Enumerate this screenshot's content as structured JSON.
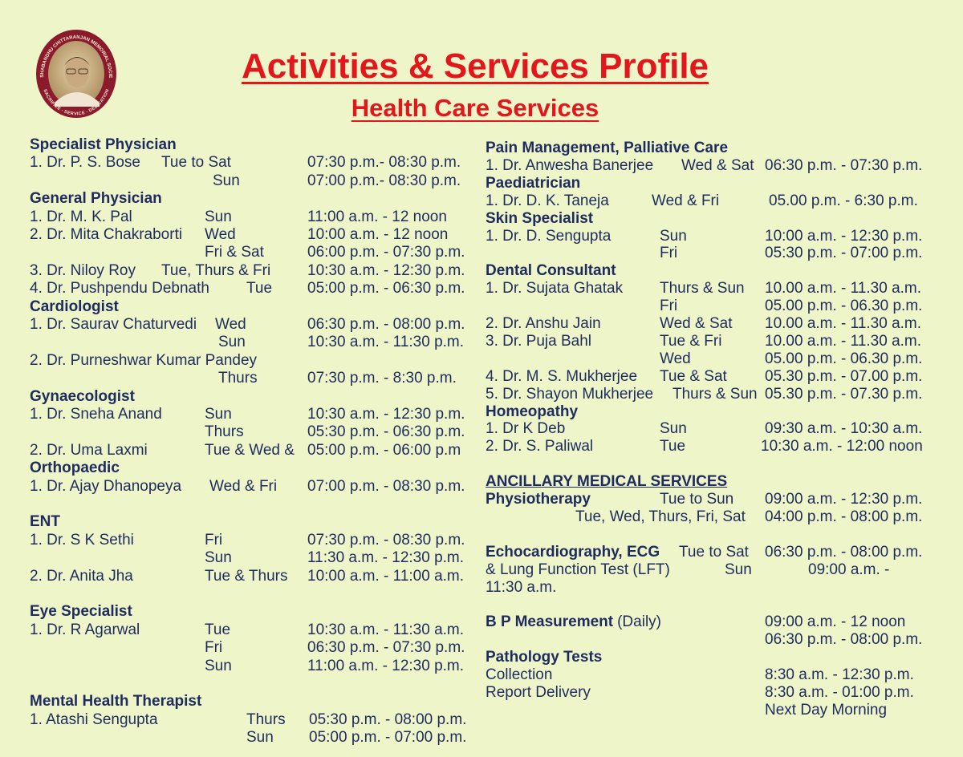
{
  "logo": {
    "ring_text_top": "DESHABANDHU CHITTARANJAN MEMORIAL SOCIETY",
    "ring_text_bottom": "SACRIFICE - SERVICE - DEDICATION",
    "ring_color": "#8b1a2c"
  },
  "header": {
    "title": "Activities & Services Profile",
    "subtitle": "Health Care Services",
    "title_color": "#e3161c"
  },
  "text_color": "#1f2b5e",
  "left": [
    {
      "heading": "Specialist Physician"
    },
    {
      "name": "1. Dr. P. S. Bose",
      "days": "Tue to Sat",
      "time": "07:30 p.m.- 08:30 p.m."
    },
    {
      "days": "Sun",
      "time": "07:00 p.m.- 08:30 p.m."
    },
    {
      "heading": "General Physician"
    },
    {
      "name": "1. Dr. M. K. Pal",
      "days": "Sun",
      "time": "11:00 a.m. - 12 noon"
    },
    {
      "name": "2. Dr. Mita Chakraborti",
      "days": "Wed",
      "time": "10:00 a.m. - 12 noon"
    },
    {
      "days": "Fri & Sat",
      "time": "06:00 p.m. - 07:30 p.m."
    },
    {
      "name": "3. Dr. Niloy Roy",
      "days": "Tue, Thurs & Fri",
      "time": "10:30 a.m. - 12:30 p.m."
    },
    {
      "name": "4. Dr. Pushpendu Debnath",
      "days": "Tue",
      "time": "05:00 p.m. - 06:30 p.m."
    },
    {
      "heading": "Cardiologist"
    },
    {
      "name": "1. Dr. Saurav Chaturvedi",
      "days": "Wed",
      "time": "06:30 p.m. - 08:00 p.m."
    },
    {
      "days": "Sun",
      "time": "10:30 a.m. - 11:30 p.m."
    },
    {
      "name": "2. Dr. Purneshwar Kumar Pandey"
    },
    {
      "days": "Thurs",
      "time": "07:30 p.m. - 8:30 p.m."
    },
    {
      "heading": "Gynaecologist"
    },
    {
      "name": "1. Dr. Sneha Anand",
      "days": "Sun",
      "time": "10:30 a.m. - 12:30 p.m."
    },
    {
      "days": "Thurs",
      "time": "05:30 p.m. - 06:30 p.m."
    },
    {
      "name": "2. Dr. Uma Laxmi",
      "days": "Tue & Wed &",
      "time": "05:00 p.m. - 06:00 p.m"
    },
    {
      "heading": "Orthopaedic"
    },
    {
      "name": "1. Dr. Ajay Dhanopeya",
      "days": "Wed & Fri",
      "time": "07:00 p.m. - 08:30 p.m."
    },
    {
      "heading": "ENT"
    },
    {
      "name": "1. Dr. S K Sethi",
      "days": "Fri",
      "time": "07:30 p.m. - 08:30 p.m."
    },
    {
      "days": "Sun",
      "time": "11:30 a.m. - 12:30 p.m."
    },
    {
      "name": "2. Dr. Anita Jha",
      "days": "Tue & Thurs",
      "time": "10:00 a.m. - 11:00 a.m."
    },
    {
      "heading": "Eye Specialist"
    },
    {
      "name": "1. Dr. R Agarwal",
      "days": "Tue",
      "time": "10:30 a.m. - 11:30 a.m."
    },
    {
      "days": "Fri",
      "time": "06:30 p.m. - 07:30 p.m."
    },
    {
      "days": "Sun",
      "time": "11:00 a.m. - 12:30 p.m."
    },
    {
      "heading": "Mental Health Therapist"
    },
    {
      "name": "1. Atashi Sengupta",
      "days": "Thurs",
      "time": "05:30 p.m. - 08:00 p.m."
    },
    {
      "days": "Sun",
      "time": "05:00 p.m. - 07:00 p.m."
    }
  ],
  "right": [
    {
      "heading": "Pain Management, Palliative Care"
    },
    {
      "name": "1. Dr. Anwesha Banerjee",
      "days": "Wed & Sat",
      "time": "06:30 p.m. - 07:30 p.m."
    },
    {
      "heading": "Paediatrician"
    },
    {
      "name": "1. Dr. D. K. Taneja",
      "days": "Wed & Fri",
      "time": "05.00 p.m. - 6:30 p.m."
    },
    {
      "heading": "Skin Specialist"
    },
    {
      "name": "1. Dr. D. Sengupta",
      "days": "Sun",
      "time": "10:00 a.m. - 12:30 p.m."
    },
    {
      "days": "Fri",
      "time": "05:30 p.m. - 07:00 p.m."
    },
    {
      "heading": "Dental Consultant"
    },
    {
      "name": "1. Dr. Sujata Ghatak",
      "days": "Thurs & Sun",
      "time": "10.00 a.m. - 11.30 a.m."
    },
    {
      "days": "Fri",
      "time": "05.00 p.m. - 06.30 p.m."
    },
    {
      "name": "2. Dr. Anshu Jain",
      "days": "Wed & Sat",
      "time": "10.00 a.m. - 11.30 a.m."
    },
    {
      "name": "3. Dr. Puja Bahl",
      "days": "Tue & Fri",
      "time": "10.00 a.m. - 11.30 a.m."
    },
    {
      "days": "Wed",
      "time": "05.00 p.m. - 06.30 p.m."
    },
    {
      "name": "4. Dr. M. S. Mukherjee",
      "days": "Tue & Sat",
      "time": "05.30 p.m. - 07.00 p.m."
    },
    {
      "name": "5. Dr. Shayon Mukherjee",
      "days": "Thurs & Sun",
      "time": "05.30 p.m. - 07.30 p.m."
    },
    {
      "heading": "Homeopathy"
    },
    {
      "name": "1. Dr K Deb",
      "days": "Sun",
      "time": "09:30 a.m. - 10:30 a.m."
    },
    {
      "name": "2. Dr. S. Paliwal",
      "days": "Tue",
      "time": "10:30 a.m. - 12:00 noon"
    },
    {
      "heading": "ANCILLARY MEDICAL SERVICES",
      "underline": true
    },
    {
      "service": "Physiotherapy",
      "days": "Tue to Sun",
      "time": "09:00 a.m. - 12:30 p.m."
    },
    {
      "days": "Tue, Wed, Thurs, Fri, Sat",
      "time": "04:00 p.m. - 08:00 p.m."
    },
    {
      "service": "Echocardiography, ECG",
      "days": "Tue to Sat",
      "time": "06:30 p.m. - 08:00 p.m."
    },
    {
      "name": "& Lung Function Test (LFT)",
      "days": "Sun",
      "time": "09:00 a.m. -"
    },
    {
      "name": "11:30 a.m."
    },
    {
      "service": "B P Measurement",
      "note": "(Daily)",
      "time": "09:00 a.m. - 12 noon"
    },
    {
      "time": "06:30 p.m. - 08:00 p.m."
    },
    {
      "heading": "Pathology Tests"
    },
    {
      "name": "Collection",
      "time": "8:30 a.m. - 12:30 p.m."
    },
    {
      "name": "Report Delivery",
      "time": "8:30 a.m. - 01:00 p.m."
    },
    {
      "time": "Next Day Morning"
    }
  ]
}
